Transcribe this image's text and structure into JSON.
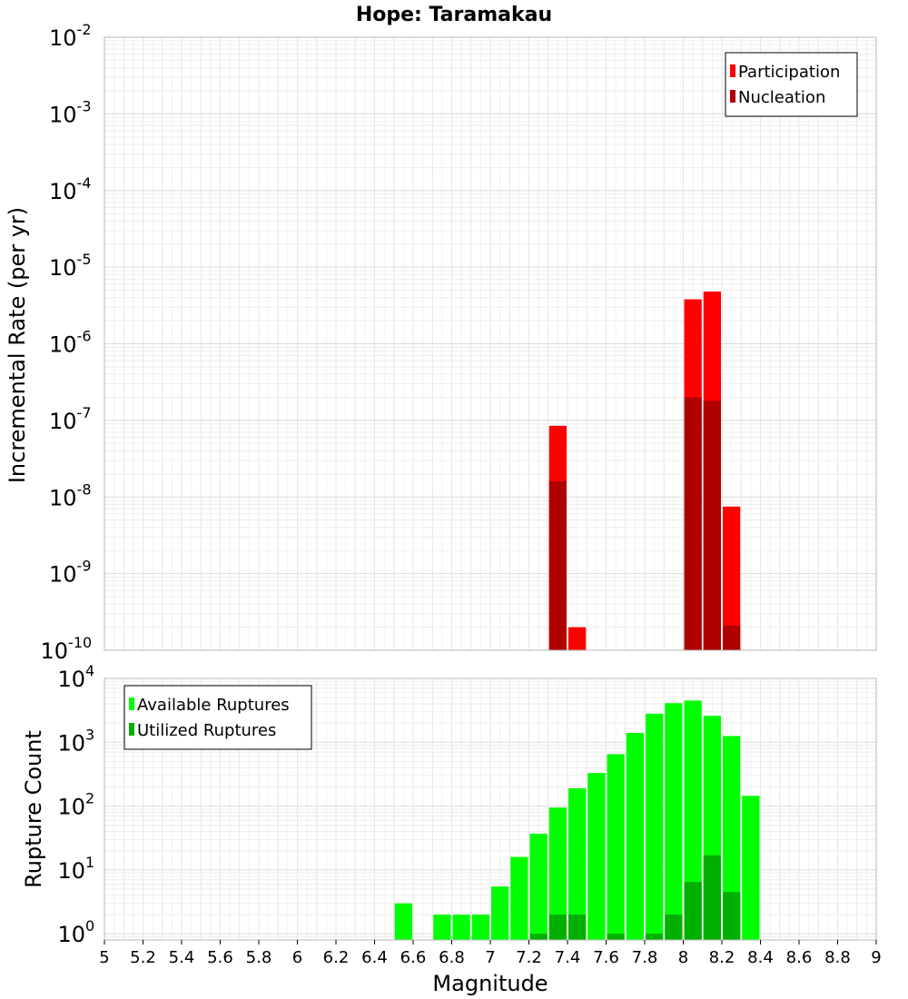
{
  "chart_data": [
    {
      "type": "bar",
      "title": "Hope: Taramakau",
      "xlabel": "",
      "ylabel": "Incremental Rate (per yr)",
      "yscale": "log",
      "ylim": [
        1e-10,
        0.01
      ],
      "xlim": [
        5,
        9
      ],
      "y_tick_labels": [
        {
          "base": "10",
          "exp": "-2"
        },
        {
          "base": "10",
          "exp": "-3"
        },
        {
          "base": "10",
          "exp": "-4"
        },
        {
          "base": "10",
          "exp": "-5"
        },
        {
          "base": "10",
          "exp": "-6"
        },
        {
          "base": "10",
          "exp": "-7"
        },
        {
          "base": "10",
          "exp": "-8"
        },
        {
          "base": "10",
          "exp": "-9"
        },
        {
          "base": "10",
          "exp": "-10"
        }
      ],
      "grid": true,
      "legend_position": "top-right",
      "series": [
        {
          "name": "Participation",
          "color": "#ff0000",
          "points": [
            {
              "x": 7.35,
              "y": 8.5e-08
            },
            {
              "x": 7.45,
              "y": 2e-10
            },
            {
              "x": 8.05,
              "y": 3.8e-06
            },
            {
              "x": 8.15,
              "y": 4.8e-06
            },
            {
              "x": 8.25,
              "y": 7.5e-09
            }
          ]
        },
        {
          "name": "Nucleation",
          "color": "#b00000",
          "points": [
            {
              "x": 7.35,
              "y": 1.6e-08
            },
            {
              "x": 8.05,
              "y": 2e-07
            },
            {
              "x": 8.15,
              "y": 1.8e-07
            },
            {
              "x": 8.25,
              "y": 2.1e-10
            }
          ]
        }
      ]
    },
    {
      "type": "bar",
      "title": "",
      "xlabel": "Magnitude",
      "ylabel": "Rupture Count",
      "yscale": "log",
      "ylim": [
        0.8,
        10000
      ],
      "xlim": [
        5,
        9
      ],
      "x_tick_labels": [
        "5",
        "5.2",
        "5.4",
        "5.6",
        "5.8",
        "6",
        "6.2",
        "6.4",
        "6.6",
        "6.8",
        "7",
        "7.2",
        "7.4",
        "7.6",
        "7.8",
        "8",
        "8.2",
        "8.4",
        "8.6",
        "8.8",
        "9"
      ],
      "y_tick_labels": [
        {
          "base": "10",
          "exp": "4",
          "value": 10000
        },
        {
          "base": "10",
          "exp": "3",
          "value": 1000
        },
        {
          "base": "10",
          "exp": "2",
          "value": 100
        },
        {
          "base": "10",
          "exp": "1",
          "value": 10
        },
        {
          "base": "10",
          "exp": "0",
          "value": 1
        }
      ],
      "grid": true,
      "legend_position": "top-left",
      "series": [
        {
          "name": "Available Ruptures",
          "color": "#00ff00",
          "points": [
            {
              "x": 6.55,
              "y": 3
            },
            {
              "x": 6.75,
              "y": 2
            },
            {
              "x": 6.85,
              "y": 2
            },
            {
              "x": 6.95,
              "y": 2
            },
            {
              "x": 7.05,
              "y": 5.5
            },
            {
              "x": 7.15,
              "y": 16
            },
            {
              "x": 7.25,
              "y": 37
            },
            {
              "x": 7.35,
              "y": 95
            },
            {
              "x": 7.45,
              "y": 190
            },
            {
              "x": 7.55,
              "y": 330
            },
            {
              "x": 7.65,
              "y": 650
            },
            {
              "x": 7.75,
              "y": 1400
            },
            {
              "x": 7.85,
              "y": 2800
            },
            {
              "x": 7.95,
              "y": 4100
            },
            {
              "x": 8.05,
              "y": 4500
            },
            {
              "x": 8.15,
              "y": 2600
            },
            {
              "x": 8.25,
              "y": 1250
            },
            {
              "x": 8.35,
              "y": 145
            }
          ]
        },
        {
          "name": "Utilized Ruptures",
          "color": "#00b000",
          "points": [
            {
              "x": 7.25,
              "y": 1
            },
            {
              "x": 7.35,
              "y": 2
            },
            {
              "x": 7.45,
              "y": 2
            },
            {
              "x": 7.65,
              "y": 1
            },
            {
              "x": 7.85,
              "y": 1
            },
            {
              "x": 7.95,
              "y": 2
            },
            {
              "x": 8.05,
              "y": 6.5
            },
            {
              "x": 8.15,
              "y": 17
            },
            {
              "x": 8.25,
              "y": 4.5
            }
          ]
        }
      ]
    }
  ]
}
